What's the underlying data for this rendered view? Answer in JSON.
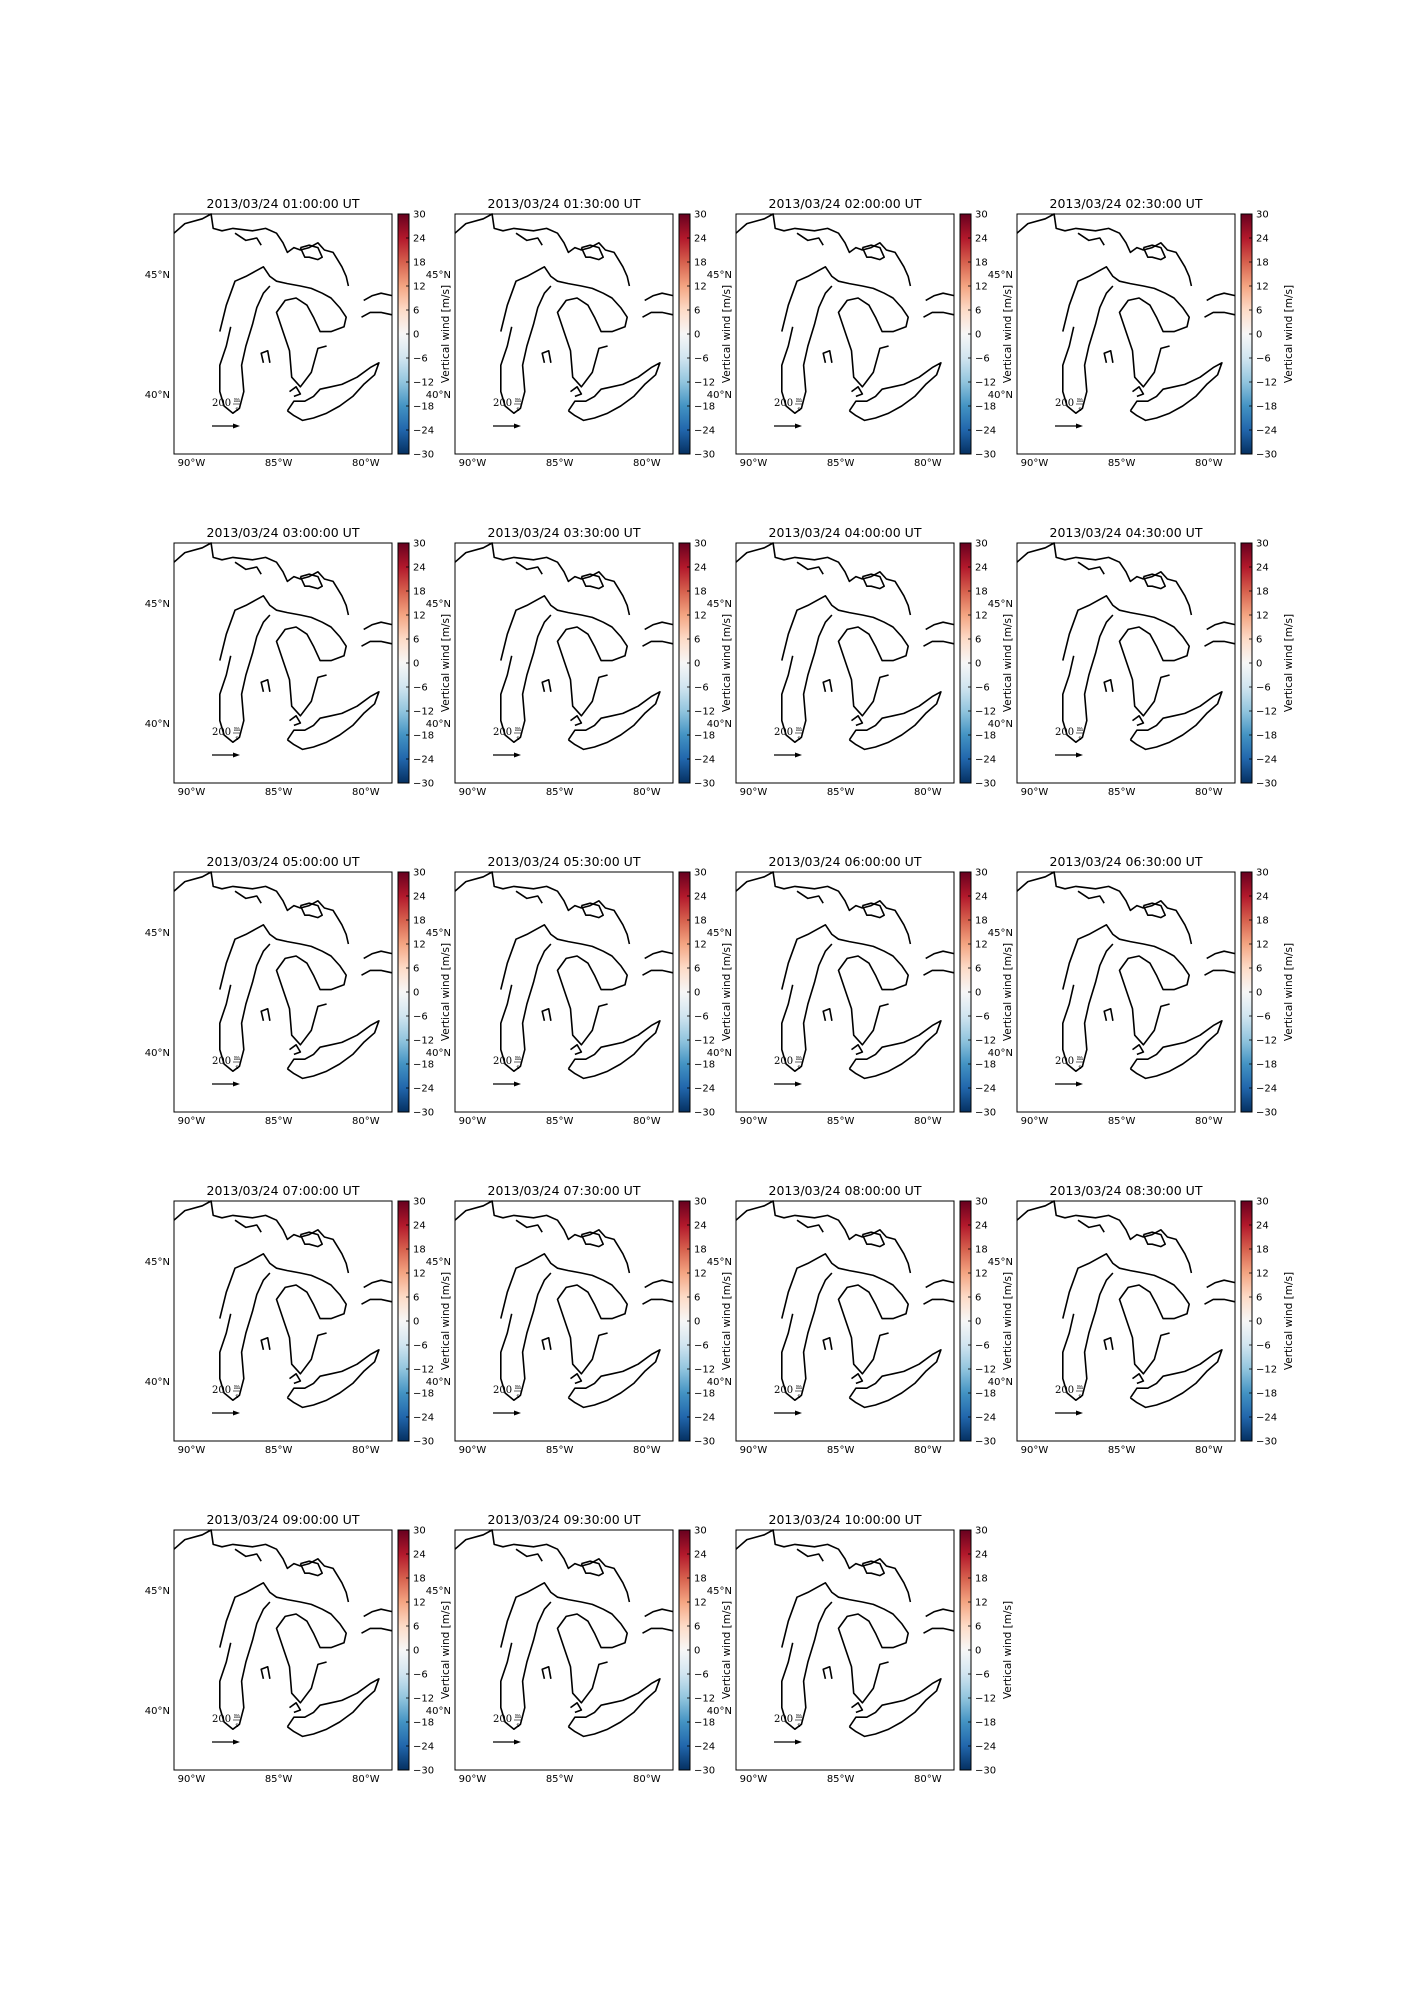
{
  "figure": {
    "panel_titles": [
      "2013/03/24 01:00:00 UT",
      "2013/03/24 01:30:00 UT",
      "2013/03/24 02:00:00 UT",
      "2013/03/24 02:30:00 UT",
      "2013/03/24 03:00:00 UT",
      "2013/03/24 03:30:00 UT",
      "2013/03/24 04:00:00 UT",
      "2013/03/24 04:30:00 UT",
      "2013/03/24 05:00:00 UT",
      "2013/03/24 05:30:00 UT",
      "2013/03/24 06:00:00 UT",
      "2013/03/24 06:30:00 UT",
      "2013/03/24 07:00:00 UT",
      "2013/03/24 07:30:00 UT",
      "2013/03/24 08:00:00 UT",
      "2013/03/24 08:30:00 UT",
      "2013/03/24 09:00:00 UT",
      "2013/03/24 09:30:00 UT",
      "2013/03/24 10:00:00 UT"
    ],
    "x_tick_labels": [
      "90°W",
      "85°W",
      "80°W"
    ],
    "y_tick_labels": [
      "45°N",
      "40°N"
    ],
    "colorbar": {
      "label": "Vertical wind [m/s]",
      "ticks": [
        "30",
        "24",
        "18",
        "12",
        "6",
        "0",
        "−6",
        "−12",
        "−18",
        "−24",
        "−30"
      ],
      "colormap_stops": [
        "#67001f",
        "#b2182b",
        "#d6604d",
        "#f4a582",
        "#fddbc7",
        "#f7f7f7",
        "#d1e5f0",
        "#92c5de",
        "#4393c3",
        "#2166ac",
        "#053061"
      ]
    },
    "quiver_key": {
      "value": "200",
      "unit_numerator": "m",
      "unit_denominator": "s"
    }
  },
  "chart_data": {
    "type": "map",
    "panel_count": 19,
    "grid": "4 columns x 5 rows",
    "map_extent": {
      "lon": [
        -91,
        -78.5
      ],
      "lat": [
        37.5,
        47.5
      ]
    },
    "x_ticks": [
      -90,
      -85,
      -80
    ],
    "y_ticks": [
      45,
      40
    ],
    "colorbar_range": [
      -30,
      30
    ],
    "colorbar_ticks": [
      30,
      24,
      18,
      12,
      6,
      0,
      -6,
      -12,
      -18,
      -24,
      -30
    ],
    "colorbar_label": "Vertical wind [m/s]",
    "quiver_reference": {
      "value": 200,
      "unit": "m/s"
    },
    "coastline": "Great Lakes",
    "colors": {
      "coastline": "#000000",
      "vector": "#000000"
    }
  }
}
